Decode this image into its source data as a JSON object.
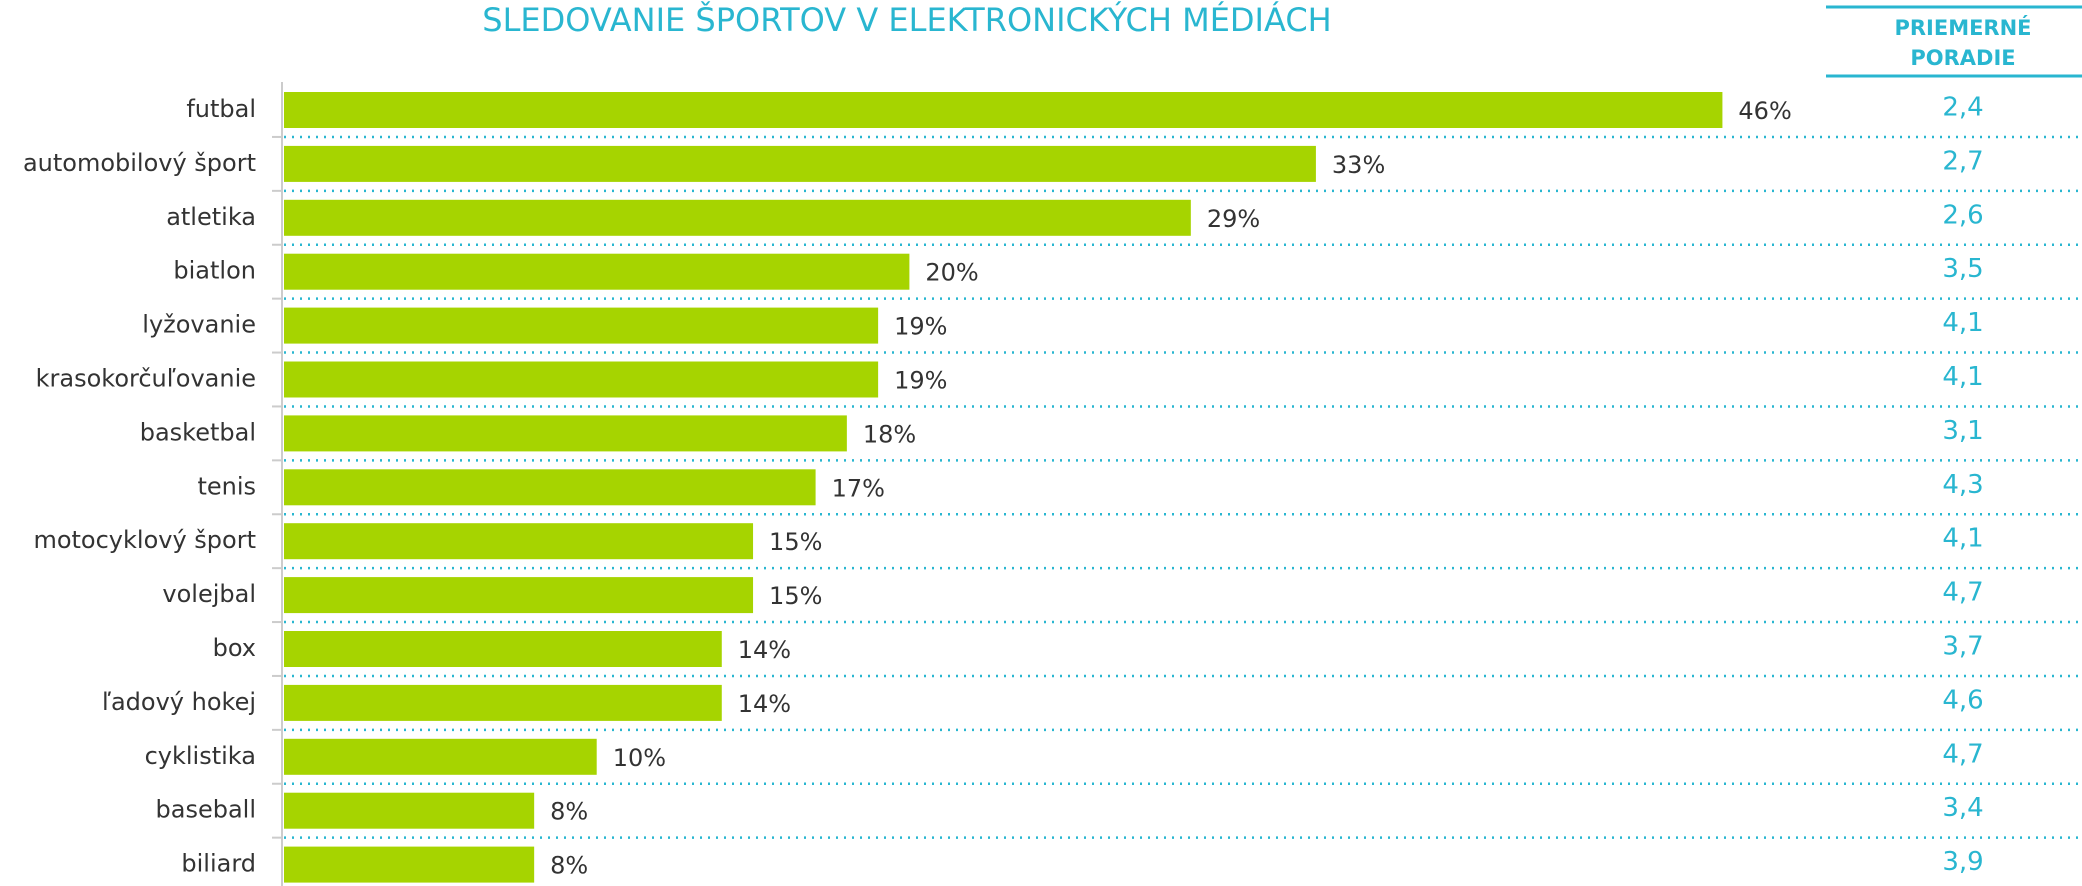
{
  "chart_data": {
    "type": "bar",
    "orientation": "horizontal",
    "title": "SLEDOVANIE ŠPORTOV V ELEKTRONICKÝCH MÉDIÁCH",
    "categories": [
      "futbal",
      "automobilový šport",
      "atletika",
      "biatlon",
      "lyžovanie",
      "krasokorčuľovanie",
      "basketbal",
      "tenis",
      "motocyklový šport",
      "volejbal",
      "box",
      "ľadový hokej",
      "cyklistika",
      "baseball",
      "biliard"
    ],
    "values": [
      46,
      33,
      29,
      20,
      19,
      19,
      18,
      17,
      15,
      15,
      14,
      14,
      10,
      8,
      8
    ],
    "value_labels": [
      "46%",
      "33%",
      "29%",
      "20%",
      "19%",
      "19%",
      "18%",
      "17%",
      "15%",
      "15%",
      "14%",
      "14%",
      "10%",
      "8%",
      "8%"
    ],
    "color": "#a6d400",
    "side_column": {
      "header": [
        "PRIEMERNÉ",
        "PORADIE"
      ],
      "values": [
        "2,4",
        "2,7",
        "2,6",
        "3,5",
        "4,1",
        "4,1",
        "3,1",
        "4,3",
        "4,1",
        "4,7",
        "3,7",
        "4,6",
        "4,7",
        "3,4",
        "3,9"
      ],
      "color": "#29b6d0"
    }
  }
}
